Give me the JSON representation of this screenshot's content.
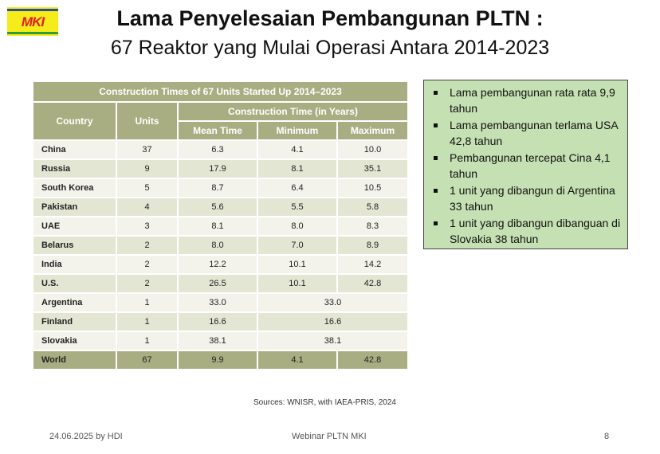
{
  "logo": {
    "text": "MKI",
    "colors": {
      "bg": "#f6ec1a",
      "text": "#e0202a",
      "top": "#2a4fa0",
      "bottom": "#2e9a3a"
    }
  },
  "header": {
    "title": "Lama Penyelesaian Pembangunan PLTN :",
    "subtitle": "67 Reaktor yang Mulai Operasi Antara 2014-2023"
  },
  "table": {
    "caption": "Construction Times of 67 Units Started Up 2014–2023",
    "col_country": "Country",
    "col_units": "Units",
    "group": "Construction Time (in Years)",
    "col_mean": "Mean Time",
    "col_min": "Minimum",
    "col_max": "Maximum",
    "rows": [
      {
        "country": "China",
        "units": "37",
        "mean": "6.3",
        "min": "4.1",
        "max": "10.0"
      },
      {
        "country": "Russia",
        "units": "9",
        "mean": "17.9",
        "min": "8.1",
        "max": "35.1"
      },
      {
        "country": "South Korea",
        "units": "5",
        "mean": "8.7",
        "min": "6.4",
        "max": "10.5"
      },
      {
        "country": "Pakistan",
        "units": "4",
        "mean": "5.6",
        "min": "5.5",
        "max": "5.8"
      },
      {
        "country": "UAE",
        "units": "3",
        "mean": "8.1",
        "min": "8.0",
        "max": "8.3"
      },
      {
        "country": "Belarus",
        "units": "2",
        "mean": "8.0",
        "min": "7.0",
        "max": "8.9"
      },
      {
        "country": "India",
        "units": "2",
        "mean": "12.2",
        "min": "10.1",
        "max": "14.2"
      },
      {
        "country": "U.S.",
        "units": "2",
        "mean": "26.5",
        "min": "10.1",
        "max": "42.8"
      },
      {
        "country": "Argentina",
        "units": "1",
        "mean": "33.0",
        "minmax": "33.0"
      },
      {
        "country": "Finland",
        "units": "1",
        "mean": "16.6",
        "minmax": "16.6"
      },
      {
        "country": "Slovakia",
        "units": "1",
        "mean": "38.1",
        "minmax": "38.1"
      }
    ],
    "world": {
      "country": "World",
      "units": "67",
      "mean": "9.9",
      "min": "4.1",
      "max": "42.8"
    },
    "source": "Sources: WNISR, with IAEA-PRIS, 2024"
  },
  "notes": [
    "Lama pembangunan rata rata 9,9 tahun",
    "Lama pembangunan terlama USA 42,8 tahun",
    "Pembangunan tercepat Cina 4,1 tahun",
    "1 unit yang dibangun di Argentina 33 tahun",
    "1 unit yang dibangun dibanguan di Slovakia 38 tahun"
  ],
  "footer": {
    "left": "24.06.2025 by HDI",
    "center": "Webinar PLTN MKI",
    "page": "8"
  }
}
